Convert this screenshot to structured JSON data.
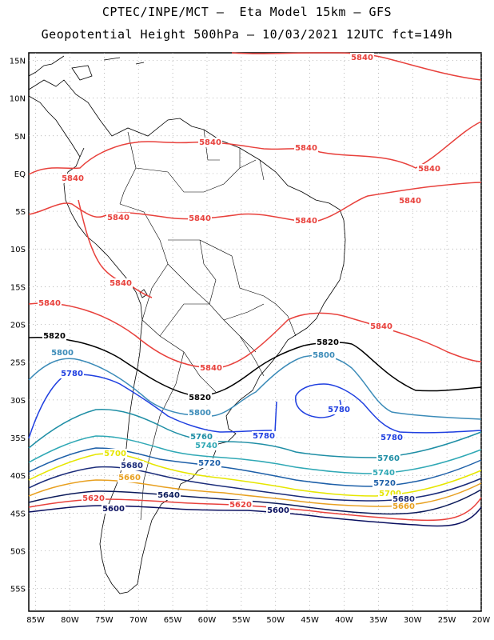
{
  "header": {
    "line1": "CPTEC/INPE/MCT –  Eta Model 15km – GFS",
    "line2": "Geopotential Height 500hPa – 10/03/2021 12UTC fct=149h"
  },
  "map": {
    "lat_labels": [
      "15N",
      "10N",
      "5N",
      "EQ",
      "5S",
      "10S",
      "15S",
      "20S",
      "25S",
      "30S",
      "35S",
      "40S",
      "45S",
      "50S",
      "55S"
    ],
    "lon_labels": [
      "85W",
      "80W",
      "75W",
      "70W",
      "65W",
      "60W",
      "55W",
      "50W",
      "45W",
      "40W",
      "35W",
      "30W",
      "25W",
      "20W"
    ],
    "lat_range": [
      -58,
      16
    ],
    "lon_range": [
      -86,
      -20
    ],
    "grid": true
  },
  "contours": [
    {
      "value": "5840",
      "color": "#e8413c"
    },
    {
      "value": "5820",
      "color": "#000000"
    },
    {
      "value": "5800",
      "color": "#3b8bb8"
    },
    {
      "value": "5780",
      "color": "#1f3fe0"
    },
    {
      "value": "5760",
      "color": "#1e8ea5"
    },
    {
      "value": "5740",
      "color": "#2fa8b5"
    },
    {
      "value": "5720",
      "color": "#1d5fa8"
    },
    {
      "value": "5700",
      "color": "#e6e600"
    },
    {
      "value": "5680",
      "color": "#1b2c7a"
    },
    {
      "value": "5660",
      "color": "#e8a020"
    },
    {
      "value": "5640",
      "color": "#0b1a5a"
    },
    {
      "value": "5620",
      "color": "#e8413c"
    },
    {
      "value": "5600",
      "color": "#0a1060"
    }
  ],
  "contour_labels": [
    {
      "text": "5840",
      "c": 0
    },
    {
      "text": "5840",
      "c": 0
    },
    {
      "text": "5840",
      "c": 0
    },
    {
      "text": "5840",
      "c": 0
    },
    {
      "text": "5840",
      "c": 0
    },
    {
      "text": "5840",
      "c": 0
    },
    {
      "text": "5840",
      "c": 0
    },
    {
      "text": "5840",
      "c": 0
    },
    {
      "text": "5840",
      "c": 0
    },
    {
      "text": "5840",
      "c": 0
    },
    {
      "text": "5840",
      "c": 0
    },
    {
      "text": "5840",
      "c": 0
    },
    {
      "text": "5840",
      "c": 0
    },
    {
      "text": "5820",
      "c": 1
    },
    {
      "text": "5820",
      "c": 1
    },
    {
      "text": "5820",
      "c": 1
    },
    {
      "text": "5800",
      "c": 2
    },
    {
      "text": "5800",
      "c": 2
    },
    {
      "text": "5800",
      "c": 2
    },
    {
      "text": "5780",
      "c": 3
    },
    {
      "text": "5780",
      "c": 3
    },
    {
      "text": "5780",
      "c": 3
    },
    {
      "text": "5780",
      "c": 3
    },
    {
      "text": "5760",
      "c": 4
    },
    {
      "text": "5760",
      "c": 4
    },
    {
      "text": "5740",
      "c": 5
    },
    {
      "text": "5740",
      "c": 5
    },
    {
      "text": "5720",
      "c": 6
    },
    {
      "text": "5720",
      "c": 6
    },
    {
      "text": "5700",
      "c": 7
    },
    {
      "text": "5700",
      "c": 7
    },
    {
      "text": "5680",
      "c": 8
    },
    {
      "text": "5680",
      "c": 8
    },
    {
      "text": "5660",
      "c": 9
    },
    {
      "text": "5660",
      "c": 9
    },
    {
      "text": "5640",
      "c": 10
    },
    {
      "text": "5620",
      "c": 11
    },
    {
      "text": "5620",
      "c": 11
    },
    {
      "text": "5600",
      "c": 12
    },
    {
      "text": "5600",
      "c": 12
    }
  ]
}
